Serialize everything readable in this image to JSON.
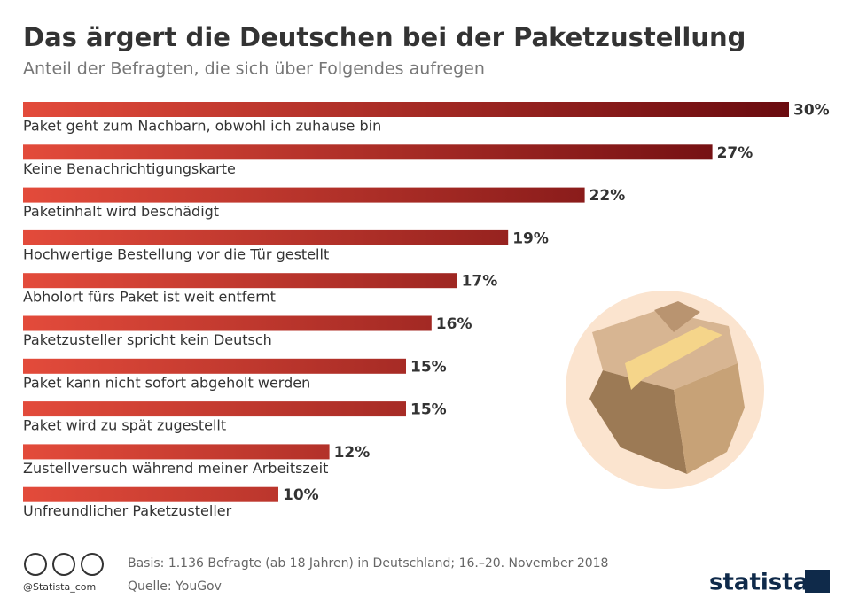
{
  "chart_data": {
    "type": "bar",
    "orientation": "horizontal",
    "title": "Das ärgert die Deutschen bei der Paketzustellung",
    "subtitle": "Anteil der Befragten, die sich über Folgendes aufregen",
    "categories": [
      "Paket geht zum Nachbarn, obwohl ich zuhause bin",
      "Keine Benachrichtigungskarte",
      "Paketinhalt wird beschädigt",
      "Hochwertige Bestellung vor die Tür gestellt",
      "Abholort fürs Paket ist weit entfernt",
      "Paketzusteller spricht kein Deutsch",
      "Paket kann nicht sofort abgeholt werden",
      "Paket wird zu spät zugestellt",
      "Zustellversuch während meiner Arbeitszeit",
      "Unfreundlicher Paketzusteller"
    ],
    "values": [
      30,
      27,
      22,
      19,
      17,
      16,
      15,
      15,
      12,
      10
    ],
    "value_labels": [
      "30%",
      "27%",
      "22%",
      "19%",
      "17%",
      "16%",
      "15%",
      "15%",
      "12%",
      "10%"
    ],
    "color": [
      "#e34b3b",
      "#6a0b0f"
    ],
    "note": "Basis: 1.136 Befragte (ab 18 Jahren) in Deutschland; 16.–20. November 2018",
    "source": "Quelle: YouGov",
    "credit": "@Statista_com",
    "brand": "statista"
  }
}
